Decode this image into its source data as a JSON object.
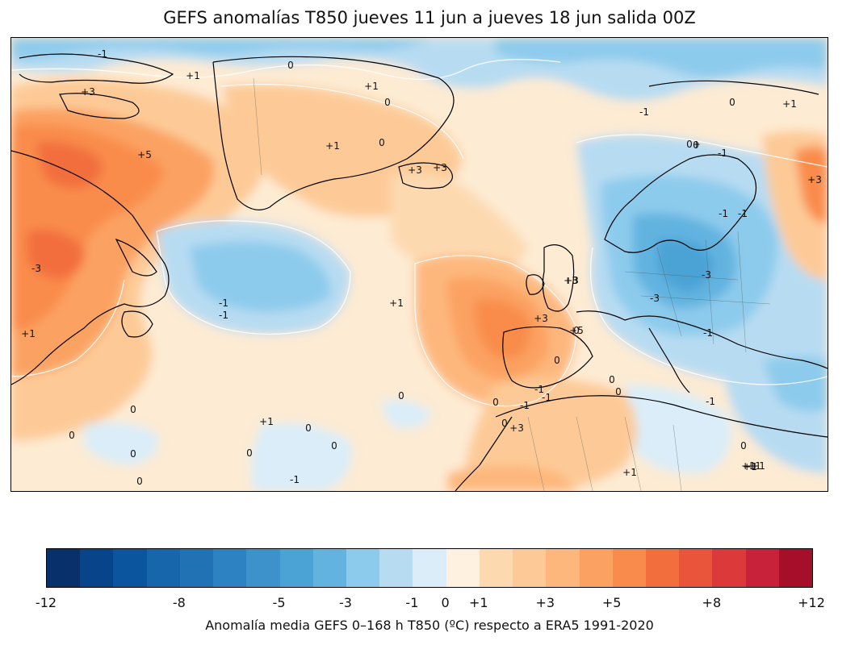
{
  "title": "GEFS anomalías T850 jueves 11 jun a jueves 18 jun salida 00Z",
  "colorbar": {
    "label": "Anomalía media GEFS 0–168 h T850 (ºC) respecto a ERA5 1991-2020",
    "colors": [
      "#08306b",
      "#08448a",
      "#0b559f",
      "#1765ab",
      "#2171b5",
      "#2d82c1",
      "#3d92cb",
      "#4ba3d5",
      "#62b3e0",
      "#8dcbec",
      "#b7dcf2",
      "#daedf8",
      "#fff1e0",
      "#fdd9b0",
      "#fdca97",
      "#fdb77d",
      "#fba262",
      "#f98c4c",
      "#f26e3c",
      "#e8553a",
      "#dc3a3a",
      "#c8223a",
      "#a50f2a"
    ],
    "ticks": [
      {
        "label": "-12",
        "v": -12
      },
      {
        "label": "-8",
        "v": -8
      },
      {
        "label": "-5",
        "v": -5
      },
      {
        "label": "-3",
        "v": -3
      },
      {
        "label": "-1",
        "v": -1
      },
      {
        "label": "0",
        "v": 0
      },
      {
        "label": "+1",
        "v": 1
      },
      {
        "label": "+3",
        "v": 3
      },
      {
        "label": "+5",
        "v": 5
      },
      {
        "label": "+8",
        "v": 8
      },
      {
        "label": "+12",
        "v": 12
      }
    ],
    "boundaries": [
      -12,
      -11,
      -10,
      -9,
      -8,
      -7,
      -6,
      -5,
      -4,
      -3,
      -2,
      -1,
      0,
      1,
      2,
      3,
      4,
      5,
      6,
      7,
      8,
      9,
      10,
      12
    ]
  },
  "map": {
    "contour_labels": [
      "-1",
      "+1",
      "0",
      "+3",
      "+1",
      "0",
      "+1",
      "+5",
      "+1",
      "0",
      "+3",
      "+3",
      "0",
      "-1",
      "0",
      "+1",
      "-1",
      "0+",
      "-1",
      "+5",
      "+3",
      "-1",
      "-3",
      "+3",
      "-3",
      "+3",
      "-1",
      "-3",
      "+3",
      "+5",
      "0",
      "-1",
      "+1",
      "0",
      "-1",
      "0-3",
      "-1",
      "+1",
      "0",
      "-1",
      "0",
      "-1",
      "-1",
      "0",
      "0",
      "-1",
      "+1",
      "0",
      "0",
      "+1",
      "0",
      "0",
      "0",
      "-1",
      "+3",
      "+1",
      "0",
      "+1",
      "-1",
      "-1",
      "+1",
      "+1",
      "0",
      "0",
      "0"
    ]
  }
}
